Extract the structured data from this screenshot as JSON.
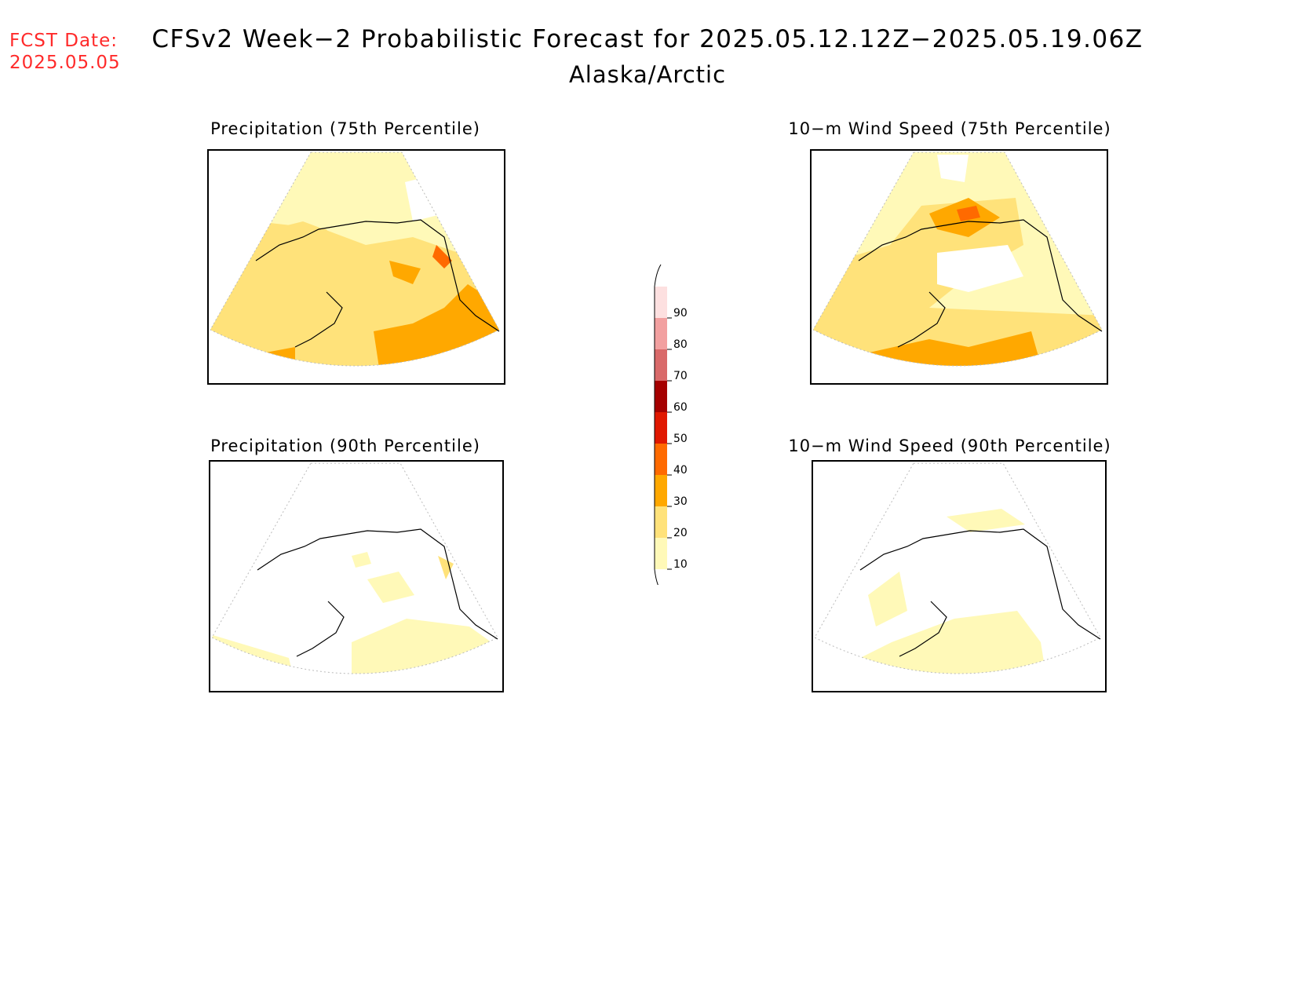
{
  "header": {
    "fcst_label": "FCST Date:",
    "fcst_date": "2025.05.05",
    "title": "CFSv2 Week−2 Probabilistic Forecast for 2025.05.12.12Z−2025.05.19.06Z",
    "region": "Alaska/Arctic"
  },
  "panels": [
    {
      "title": "Precipitation (75th Percentile)"
    },
    {
      "title": "10−m Wind Speed (75th Percentile)"
    },
    {
      "title": "Precipitation (90th Percentile)"
    },
    {
      "title": "10−m Wind Speed (90th Percentile)"
    }
  ],
  "colorbar": {
    "levels": [
      "10",
      "20",
      "30",
      "40",
      "50",
      "60",
      "70",
      "80",
      "90"
    ],
    "colors": [
      "#fff9b8",
      "#ffe27a",
      "#ffa800",
      "#ff6a00",
      "#e01800",
      "#a50000",
      "#d96a6a",
      "#f2a0a0",
      "#fde0e0"
    ]
  },
  "palette": {
    "p10": "#fff9b8",
    "p20": "#ffe27a",
    "p30": "#ffa800",
    "p40": "#ff6a00",
    "fcst_color": "#ff2a2a"
  }
}
